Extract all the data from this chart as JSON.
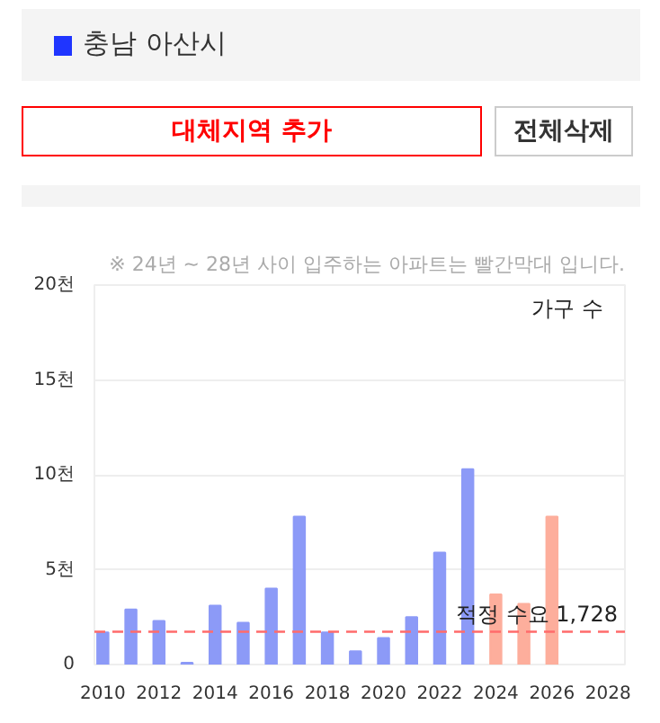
{
  "chart_data": {
    "type": "bar",
    "title": "충남 아산시",
    "subtitle": "※ 24년 ~ 28년 사이 입주하는 아파트는 빨간막대 입니다.",
    "annotations": [
      "대체지역 추가",
      "전체삭제",
      "가구 수"
    ],
    "x": [
      2010,
      2011,
      2012,
      2013,
      2014,
      2015,
      2016,
      2017,
      2018,
      2019,
      2020,
      2021,
      2022,
      2023,
      2024,
      2025,
      2026
    ],
    "values": [
      1.7,
      2.9,
      2.3,
      0.1,
      3.1,
      2.2,
      4.0,
      7.8,
      1.7,
      0.7,
      1.4,
      2.5,
      5.9,
      10.3,
      3.7,
      3.2,
      7.8
    ],
    "colors": [
      "#8c9af7",
      "#8c9af7",
      "#8c9af7",
      "#8c9af7",
      "#8c9af7",
      "#8c9af7",
      "#8c9af7",
      "#8c9af7",
      "#8c9af7",
      "#8c9af7",
      "#8c9af7",
      "#8c9af7",
      "#8c9af7",
      "#8c9af7",
      "#fdae9c",
      "#fdae9c",
      "#fdae9c"
    ],
    "xlim": [
      2009.7,
      2028.6
    ],
    "xticks": [
      2010,
      2012,
      2014,
      2016,
      2018,
      2020,
      2022,
      2024,
      2026,
      2028
    ],
    "ylim": [
      0,
      20
    ],
    "yticks": [
      0,
      {
        "value": 5,
        "label": "5천"
      },
      {
        "value": 10,
        "label": "10천"
      },
      {
        "value": 15,
        "label": "15천"
      },
      {
        "value": 20,
        "label": "20천"
      }
    ],
    "ref_lines": [
      {
        "axis": "y",
        "value": 1.728,
        "label": "적정 수요 1,728",
        "color": "#ff6b6b",
        "line_style": "dashed"
      }
    ],
    "grid": "y"
  }
}
